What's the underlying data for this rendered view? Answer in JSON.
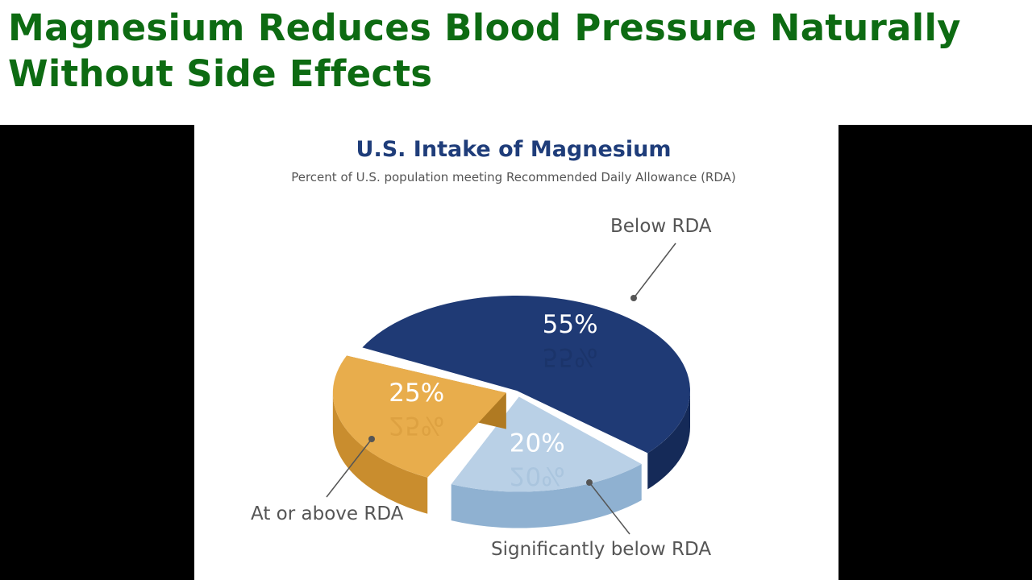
{
  "headline": {
    "line1": "Magnesium Reduces Blood Pressure Naturally",
    "line2": "Without Side Effects"
  },
  "colors": {
    "headline": "#0d6b12",
    "title": "#1f3d7a",
    "slice_below": "#1f3a75",
    "slice_below_side": "#152a58",
    "slice_above": "#e8ad4c",
    "slice_above_side": "#c98d2e",
    "slice_significant": "#b9d0e6",
    "slice_significant_side": "#8fb1d1"
  },
  "chart_data": {
    "type": "pie",
    "title": "U.S. Intake of Magnesium",
    "subtitle": "Percent of U.S. population meeting Recommended Daily Allowance (RDA)",
    "categories": [
      "Below RDA",
      "Significantly below RDA",
      "At or above RDA"
    ],
    "values": [
      55,
      20,
      25
    ],
    "value_labels": [
      "55%",
      "20%",
      "25%"
    ],
    "style": "3d-pie"
  }
}
